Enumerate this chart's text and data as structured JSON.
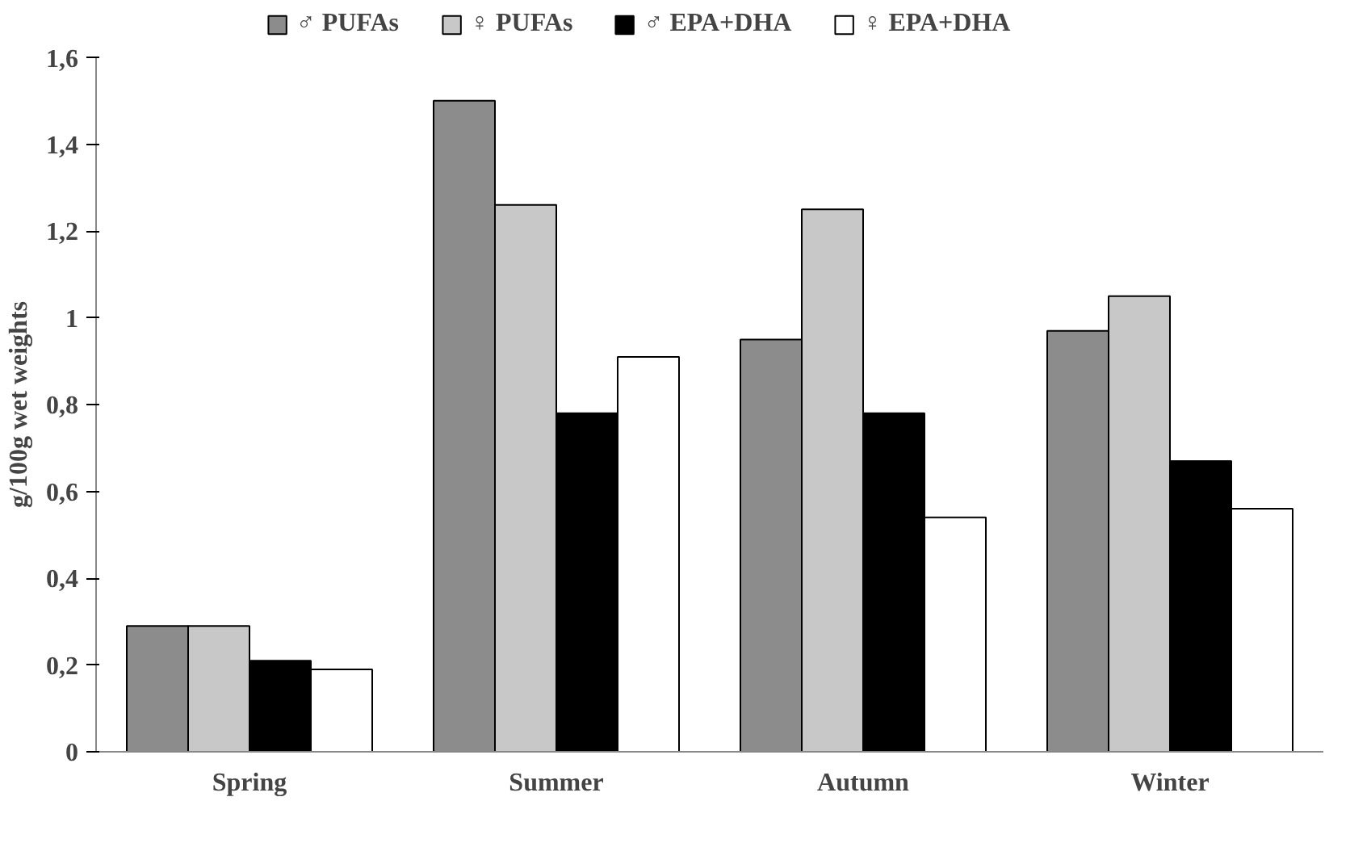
{
  "chart_data": {
    "type": "bar",
    "ylabel": "g/100g wet weights",
    "categories": [
      "Spring",
      "Summer",
      "Autumn",
      "Winter"
    ],
    "series": [
      {
        "name": "♂ PUFAs",
        "color": "#8c8c8c",
        "values": [
          0.29,
          1.5,
          0.95,
          0.97
        ]
      },
      {
        "name": "♀ PUFAs",
        "color": "#c8c8c8",
        "values": [
          0.29,
          1.26,
          1.25,
          1.05
        ]
      },
      {
        "name": "♂ EPA+DHA",
        "color": "#000000",
        "values": [
          0.21,
          0.78,
          0.78,
          0.67
        ]
      },
      {
        "name": "♀ EPA+DHA",
        "color": "#ffffff",
        "values": [
          0.19,
          0.91,
          0.54,
          0.56
        ]
      }
    ],
    "ylim": [
      0,
      1.6
    ],
    "yticks": [
      0,
      {
        "value": 0.2,
        "label": "0,2"
      },
      {
        "value": 0.4,
        "label": "0,4"
      },
      {
        "value": 0.6,
        "label": "0,6"
      },
      {
        "value": 0.8,
        "label": "0,8"
      },
      1,
      {
        "value": 1.2,
        "label": "1,2"
      },
      {
        "value": 1.4,
        "label": "1,4"
      },
      {
        "value": 1.6,
        "label": "1,6"
      }
    ],
    "grid": false,
    "legend": "top"
  }
}
